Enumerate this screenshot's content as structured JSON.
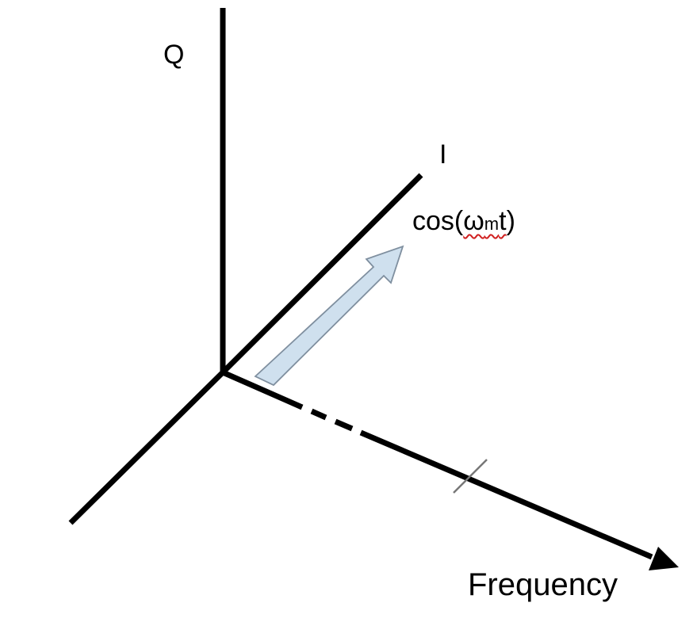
{
  "labels": {
    "q_axis": "Q",
    "i_axis": "I",
    "frequency_axis": "Frequency",
    "signal": {
      "prefix": "cos(",
      "omega": "ω",
      "subscript": "m",
      "t": "t",
      "suffix": ")"
    }
  },
  "colors": {
    "axis": "#000000",
    "arrow_fill": "#cfe0ee",
    "arrow_stroke": "#7f8f9f",
    "spellcheck_underline": "#d02020"
  }
}
